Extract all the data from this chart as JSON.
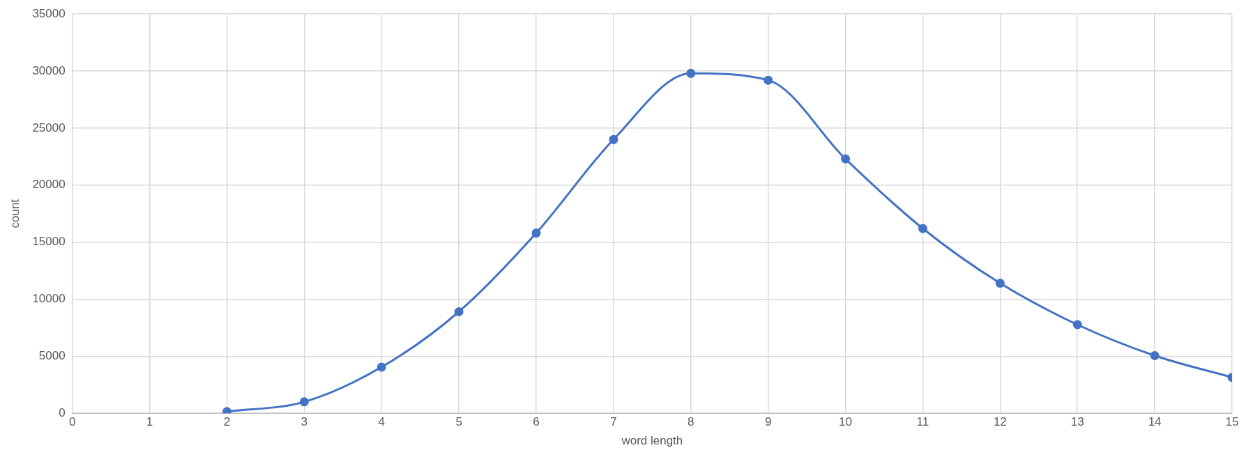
{
  "chart_data": {
    "type": "line",
    "xlabel": "word length",
    "ylabel": "count",
    "x": [
      2,
      3,
      4,
      5,
      6,
      7,
      8,
      9,
      10,
      11,
      12,
      13,
      14,
      15
    ],
    "series": [
      {
        "color": "#4472c4",
        "values": [
          150,
          1000,
          4050,
          8900,
          15800,
          24000,
          29800,
          29200,
          22300,
          16200,
          11400,
          7770,
          5050,
          3150
        ]
      }
    ],
    "xlim": [
      0,
      15
    ],
    "xticks": [
      0,
      1,
      2,
      3,
      4,
      5,
      6,
      7,
      8,
      9,
      10,
      11,
      12,
      13,
      14,
      15
    ],
    "ylim": [
      0,
      35000
    ],
    "yticks": [
      0,
      5000,
      10000,
      15000,
      20000,
      25000,
      30000,
      35000
    ],
    "grid": true,
    "legend": false,
    "marker": "circle",
    "line_style": "solid"
  }
}
